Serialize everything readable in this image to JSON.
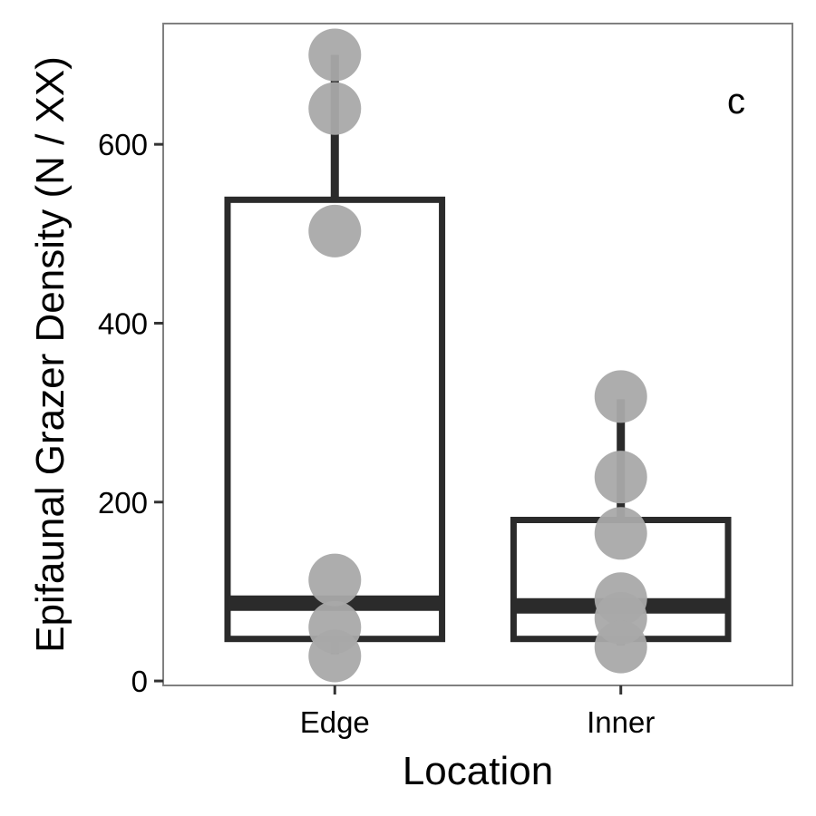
{
  "chart_data": {
    "type": "box",
    "panel_label": "c",
    "xlabel": "Location",
    "ylabel": "Epifaunal Grazer Density (N / XX)",
    "categories": [
      "Edge",
      "Inner"
    ],
    "ylim": [
      -5,
      735
    ],
    "yticks": [
      0,
      200,
      400,
      600
    ],
    "boxes": [
      {
        "category": "Edge",
        "whisker_low": 30,
        "q1": 47,
        "median": 87,
        "q3": 538,
        "whisker_high": 700
      },
      {
        "category": "Inner",
        "whisker_low": 40,
        "q1": 47,
        "median": 84,
        "q3": 180,
        "whisker_high": 315
      }
    ],
    "points": [
      {
        "category": "Edge",
        "values": [
          700,
          640,
          503,
          113,
          60,
          28
        ]
      },
      {
        "category": "Inner",
        "values": [
          318,
          228,
          165,
          92,
          70,
          38
        ]
      }
    ],
    "grid": false,
    "colors": {
      "box": "#2b2b2b",
      "points": "#a9a9a9",
      "frame": "#808080"
    }
  }
}
